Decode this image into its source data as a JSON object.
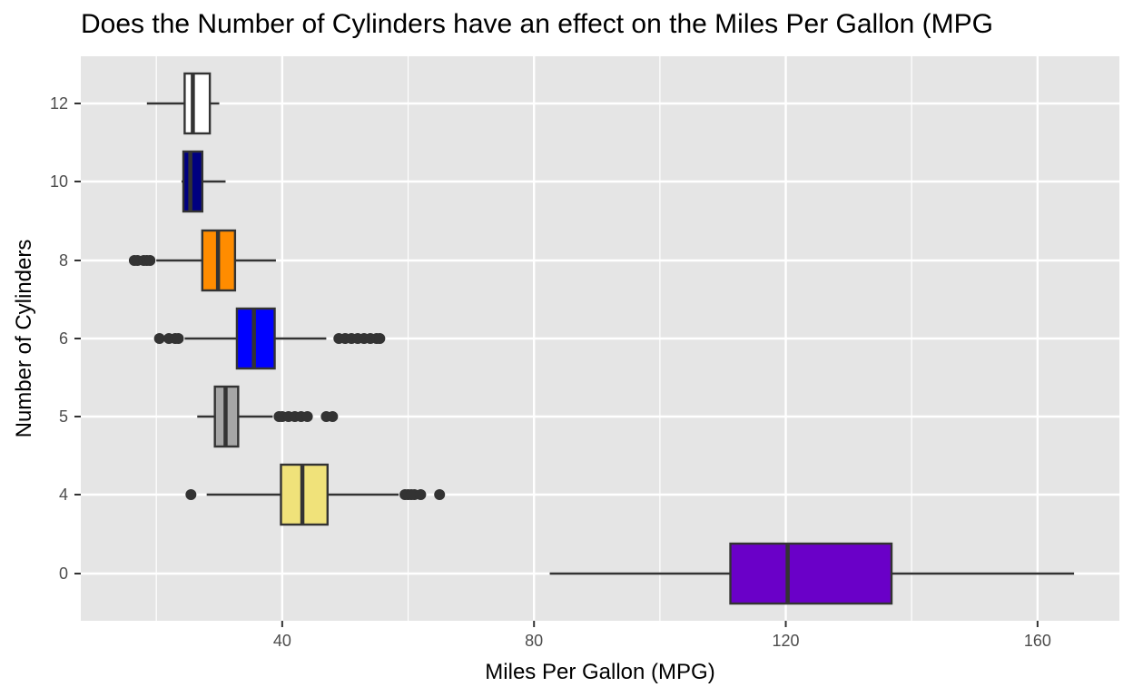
{
  "chart_data": {
    "type": "boxplot",
    "orientation": "horizontal",
    "title": "Does the Number of Cylinders have an effect on the Miles Per Gallon (MPG",
    "xlabel": "Miles Per Gallon (MPG)",
    "ylabel": "Number of Cylinders",
    "xlim": [
      8,
      173
    ],
    "x_ticks": [
      40,
      80,
      120,
      160
    ],
    "x_minor": [
      20,
      60,
      100,
      140
    ],
    "grid": true,
    "legend": "none",
    "colors": {
      "panel": "#e5e5e5",
      "grid": "#ffffff",
      "box_edge": "#333333",
      "outlier": "#333333"
    },
    "categories": [
      "0",
      "4",
      "5",
      "6",
      "8",
      "10",
      "12"
    ],
    "boxes": [
      {
        "category": "0",
        "fill": "#6a00c8",
        "whisker_low": 82.5,
        "q1": 111.2,
        "median": 120.3,
        "q3": 136.8,
        "whisker_high": 165.8,
        "outliers": []
      },
      {
        "category": "4",
        "fill": "#f0e27a",
        "whisker_low": 28,
        "q1": 39.8,
        "median": 43.2,
        "q3": 47.2,
        "whisker_high": 58.5,
        "outliers": [
          25.5,
          59.5,
          60,
          60.5,
          61,
          62,
          65
        ]
      },
      {
        "category": "5",
        "fill": "#a6a6a6",
        "whisker_low": 26.5,
        "q1": 29.3,
        "median": 31,
        "q3": 33,
        "whisker_high": 38.5,
        "outliers": [
          39.5,
          40,
          41,
          42,
          43,
          44,
          47,
          48
        ]
      },
      {
        "category": "6",
        "fill": "#0000ff",
        "whisker_low": 24.5,
        "q1": 32.8,
        "median": 35.5,
        "q3": 38.8,
        "whisker_high": 47,
        "outliers": [
          20.5,
          22,
          23,
          23.5,
          49,
          50,
          51,
          52,
          53,
          54,
          55,
          55.5
        ]
      },
      {
        "category": "8",
        "fill": "#ff8c00",
        "whisker_low": 20,
        "q1": 27.3,
        "median": 29.8,
        "q3": 32.5,
        "whisker_high": 39,
        "outliers": [
          16.5,
          17,
          18,
          18.5,
          19
        ]
      },
      {
        "category": "10",
        "fill": "#000080",
        "whisker_low": 24,
        "q1": 24.3,
        "median": 25.4,
        "q3": 27.3,
        "whisker_high": 31,
        "outliers": []
      },
      {
        "category": "12",
        "fill": "#ffffff",
        "whisker_low": 18.5,
        "q1": 24.5,
        "median": 25.8,
        "q3": 28.5,
        "whisker_high": 30,
        "outliers": []
      }
    ]
  }
}
